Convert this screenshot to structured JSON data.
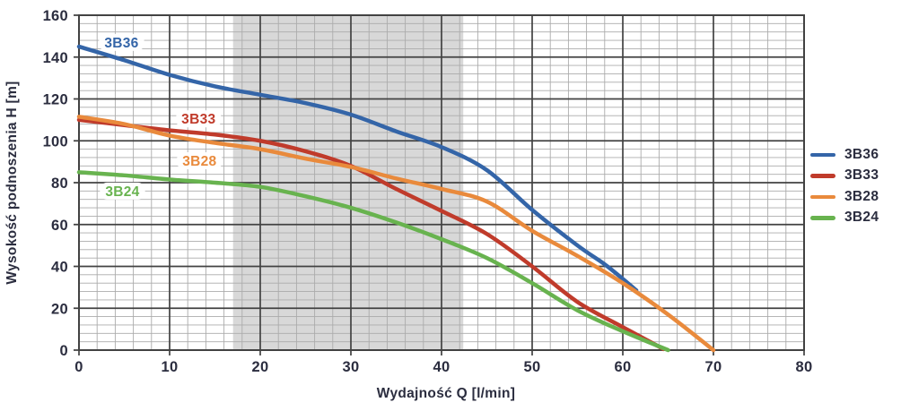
{
  "chart_data": {
    "type": "line",
    "title": "",
    "xlabel": "Wydajność Q [l/min]",
    "ylabel": "Wysokość podnoszenia H [m]",
    "xlim": [
      0,
      80
    ],
    "ylim": [
      0,
      160
    ],
    "x_ticks": [
      0,
      10,
      20,
      30,
      40,
      50,
      60,
      70,
      80
    ],
    "y_ticks": [
      0,
      20,
      40,
      60,
      80,
      100,
      120,
      140,
      160
    ],
    "x_minor_step": 2,
    "y_minor_step": 4,
    "grid": "major+minor",
    "legend_position": "right",
    "highlight_band": {
      "x_from": 17,
      "x_to": 42.4,
      "color": "#d8d8d8"
    },
    "series": [
      {
        "name": "3B36",
        "color": "#3465a8",
        "label": {
          "text": "3B36",
          "x": 4.7,
          "y": 147
        },
        "points": [
          [
            0,
            145
          ],
          [
            5,
            138.5
          ],
          [
            10,
            131.5
          ],
          [
            15,
            126
          ],
          [
            20,
            122
          ],
          [
            25,
            118
          ],
          [
            30,
            112.5
          ],
          [
            35,
            104.5
          ],
          [
            40,
            97
          ],
          [
            45,
            86
          ],
          [
            50,
            67
          ],
          [
            55,
            50
          ],
          [
            58,
            41
          ],
          [
            60,
            34
          ],
          [
            61.5,
            28.5
          ]
        ]
      },
      {
        "name": "3B33",
        "color": "#c03b2b",
        "label": {
          "text": "3B33",
          "x": 13.2,
          "y": 110.5
        },
        "points": [
          [
            0,
            110
          ],
          [
            5,
            107.5
          ],
          [
            10,
            105
          ],
          [
            15,
            103
          ],
          [
            20,
            100
          ],
          [
            25,
            95
          ],
          [
            30,
            88
          ],
          [
            35,
            77
          ],
          [
            40,
            66.5
          ],
          [
            45,
            55.5
          ],
          [
            50,
            40
          ],
          [
            55,
            23
          ],
          [
            60,
            11
          ],
          [
            64.5,
            0.5
          ]
        ]
      },
      {
        "name": "3B28",
        "color": "#e98a3c",
        "label": {
          "text": "3B28",
          "x": 13.3,
          "y": 90.5
        },
        "points": [
          [
            0,
            111.5
          ],
          [
            5,
            108
          ],
          [
            10,
            102.5
          ],
          [
            15,
            99
          ],
          [
            20,
            96
          ],
          [
            25,
            91.5
          ],
          [
            30,
            87.5
          ],
          [
            35,
            82
          ],
          [
            40,
            77
          ],
          [
            45,
            71
          ],
          [
            50,
            57
          ],
          [
            55,
            45
          ],
          [
            60,
            32
          ],
          [
            65,
            17
          ],
          [
            70,
            0
          ]
        ]
      },
      {
        "name": "3B24",
        "color": "#68b34f",
        "label": {
          "text": "3B24",
          "x": 4.8,
          "y": 76
        },
        "points": [
          [
            0,
            85
          ],
          [
            5,
            83.5
          ],
          [
            10,
            81.5
          ],
          [
            15,
            80
          ],
          [
            20,
            78
          ],
          [
            25,
            73.5
          ],
          [
            30,
            68
          ],
          [
            35,
            61
          ],
          [
            40,
            53
          ],
          [
            45,
            44
          ],
          [
            50,
            32
          ],
          [
            55,
            19
          ],
          [
            60,
            9
          ],
          [
            65,
            0
          ]
        ]
      }
    ],
    "style": {
      "plot_bg": "#ffffff",
      "major_grid_color": "#424242",
      "minor_grid_color": "#ababab",
      "tick_label_color": "#2b2d3f",
      "curve_width": 4.5
    }
  }
}
